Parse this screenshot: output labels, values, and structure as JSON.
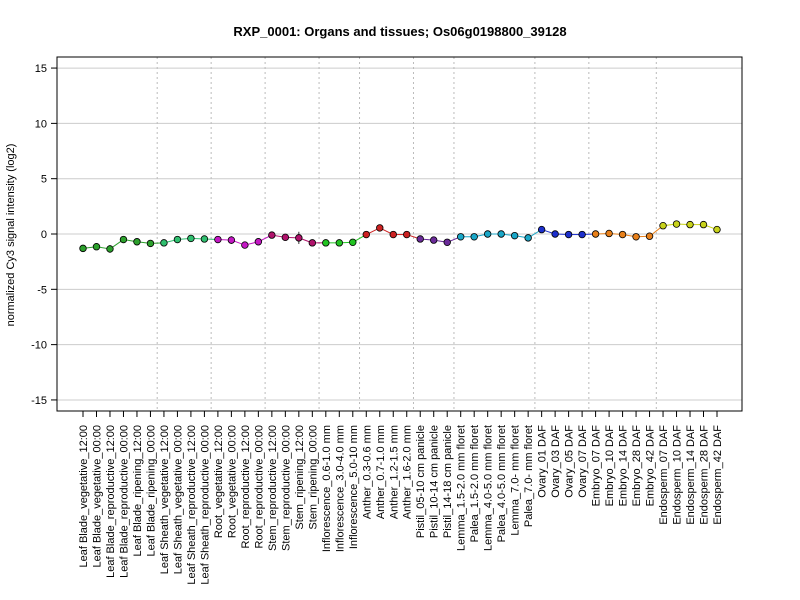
{
  "chart_data": {
    "type": "line",
    "title": "RXP_0001: Organs and tissues; Os06g0198800_39128",
    "ylabel": "normalized Cy3 signal intensity (log2)",
    "xlabel": "",
    "ylim": [
      -16,
      16
    ],
    "yticks": [
      -15,
      -10,
      -5,
      0,
      5,
      10,
      15
    ],
    "ytick_labels": [
      "-15",
      "-10",
      "-5",
      "0",
      "5",
      "10",
      "15"
    ],
    "grid": true,
    "categories": [
      "Leaf Blade_vegetative_12:00",
      "Leaf Blade_vegetative_00:00",
      "Leaf Blade_reproductive_12:00",
      "Leaf Blade_reproductive_00:00",
      "Leaf Blade_ripening_12:00",
      "Leaf Blade_ripening_00:00",
      "Leaf Sheath_vegetative_12:00",
      "Leaf Sheath_vegetative_00:00",
      "Leaf Sheath_reproductive_12:00",
      "Leaf Sheath_reproductive_00:00",
      "Root_vegetative_12:00",
      "Root_vegetative_00:00",
      "Root_reproductive_12:00",
      "Root_reproductive_00:00",
      "Stem_reproductive_12:00",
      "Stem_reproductive_00:00",
      "Stem_ripening_12:00",
      "Stem_ripening_00:00",
      "Inflorescence_0.6-1.0 mm",
      "Inflorescence_3.0-4.0 mm",
      "Inflorescence_5.0-10 mm",
      "Anther_0.3-0.6 mm",
      "Anther_0.7-1.0 mm",
      "Anther_1.2-1.5 mm",
      "Anther_1.6-2.0 mm",
      "Pistil_05-10 cm panicle",
      "Pistil_10-14 cm panicle",
      "Pistil_14-18 cm panicle",
      "Lemma_1.5-2.0 mm floret",
      "Palea_1.5-2.0 mm floret",
      "Lemma_4.0-5.0 mm floret",
      "Palea_4.0-5.0 mm floret",
      "Lemma_7.0- mm floret",
      "Palea_7.0- mm floret",
      "Ovary_01 DAF",
      "Ovary_03 DAF",
      "Ovary_05 DAF",
      "Ovary_07 DAF",
      "Embryo_07 DAF",
      "Embryo_10 DAF",
      "Embryo_14 DAF",
      "Embryo_28 DAF",
      "Embryo_42 DAF",
      "Endosperm_07 DAF",
      "Endosperm_10 DAF",
      "Endosperm_14 DAF",
      "Endosperm_28 DAF",
      "Endosperm_42 DAF"
    ],
    "series": [
      {
        "values": [
          -1.3,
          -1.15,
          -1.35,
          -0.5,
          -0.7,
          -0.85,
          -0.8,
          -0.5,
          -0.4,
          -0.45,
          -0.5,
          -0.55,
          -1.0,
          -0.7,
          -0.1,
          -0.3,
          -0.35,
          -0.8,
          -0.8,
          -0.8,
          -0.75,
          -0.05,
          0.55,
          -0.05,
          -0.05,
          -0.45,
          -0.55,
          -0.75,
          -0.25,
          -0.25,
          0.0,
          0.0,
          -0.15,
          -0.35,
          0.4,
          0.0,
          -0.05,
          -0.05,
          0.0,
          0.05,
          -0.05,
          -0.25,
          -0.2,
          0.75,
          0.9,
          0.85,
          0.85,
          0.4
        ],
        "errors": [
          0.2,
          0.25,
          0.35,
          0.15,
          0.1,
          0.1,
          0.15,
          0.1,
          0.1,
          0.1,
          0.15,
          0.35,
          0.25,
          0.1,
          0.25,
          0.2,
          0.55,
          0.3,
          0.15,
          0.1,
          0.1,
          0.15,
          0.2,
          0.3,
          0.1,
          0.1,
          0.1,
          0.1,
          0.1,
          0.1,
          0.1,
          0.1,
          0.1,
          0.15,
          0.15,
          0.1,
          0.1,
          0.1,
          0.1,
          0.1,
          0.1,
          0.1,
          0.1,
          0.1,
          0.1,
          0.1,
          0.1,
          0.1
        ],
        "colors": [
          "#2ca02c",
          "#2ca02c",
          "#2ca02c",
          "#2ca02c",
          "#2ca02c",
          "#2ca02c",
          "#2fbf6f",
          "#2fbf6f",
          "#2fbf6f",
          "#2fbf6f",
          "#c417c4",
          "#c417c4",
          "#c417c4",
          "#c417c4",
          "#b0126b",
          "#b0126b",
          "#b0126b",
          "#b0126b",
          "#22c422",
          "#22c422",
          "#22c422",
          "#cc2222",
          "#cc2222",
          "#cc2222",
          "#cc2222",
          "#6a2a99",
          "#6a2a99",
          "#6a2a99",
          "#1aa7c8",
          "#1aa7c8",
          "#1aa7c8",
          "#1aa7c8",
          "#1aa7c8",
          "#1aa7c8",
          "#1c2fcc",
          "#1c2fcc",
          "#1c2fcc",
          "#1c2fcc",
          "#e8801a",
          "#e8801a",
          "#e8801a",
          "#e8801a",
          "#e8801a",
          "#c8d21a",
          "#c8d21a",
          "#c8d21a",
          "#c8d21a",
          "#c8d21a"
        ]
      }
    ],
    "group_boundaries_after_index": [
      5,
      9,
      13,
      17,
      20,
      24,
      27,
      33,
      37,
      42
    ]
  }
}
